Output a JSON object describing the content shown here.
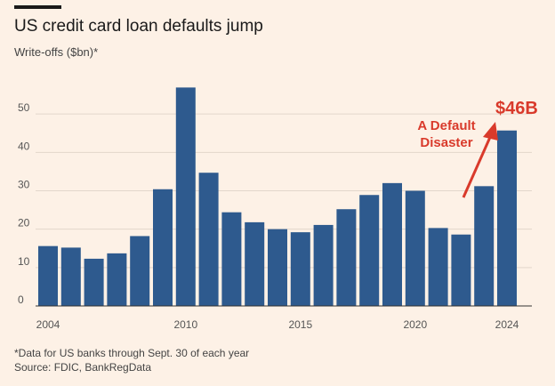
{
  "header": {
    "title": "US credit card loan defaults jump",
    "subtitle": "Write-offs ($bn)*"
  },
  "footer": {
    "note": "*Data for US banks through Sept. 30 of each year",
    "source": "Source: FDIC, BankRegData"
  },
  "annotation": {
    "value": "$46B",
    "text": "A Default Disaster",
    "color": "#d93a2b"
  },
  "chart_data": {
    "type": "bar",
    "title": "US credit card loan defaults jump",
    "ylabel": "Write-offs ($bn)*",
    "x": [
      2004,
      2005,
      2006,
      2007,
      2008,
      2009,
      2010,
      2011,
      2012,
      2013,
      2014,
      2015,
      2016,
      2017,
      2018,
      2019,
      2020,
      2021,
      2022,
      2023,
      2024
    ],
    "values": [
      15.6,
      15.2,
      12.3,
      13.7,
      18.2,
      30.4,
      56.9,
      34.7,
      24.4,
      21.8,
      20.0,
      19.2,
      21.1,
      25.2,
      28.9,
      32.0,
      30.0,
      20.3,
      18.6,
      31.2,
      45.7
    ],
    "yticks": [
      0,
      10,
      20,
      30,
      40,
      50
    ],
    "xticks": [
      2004,
      2010,
      2015,
      2020,
      2024
    ],
    "ylim": [
      0,
      60
    ],
    "grid": true,
    "bar_color": "#2e5a8e",
    "grid_color": "#e2d6cb"
  }
}
